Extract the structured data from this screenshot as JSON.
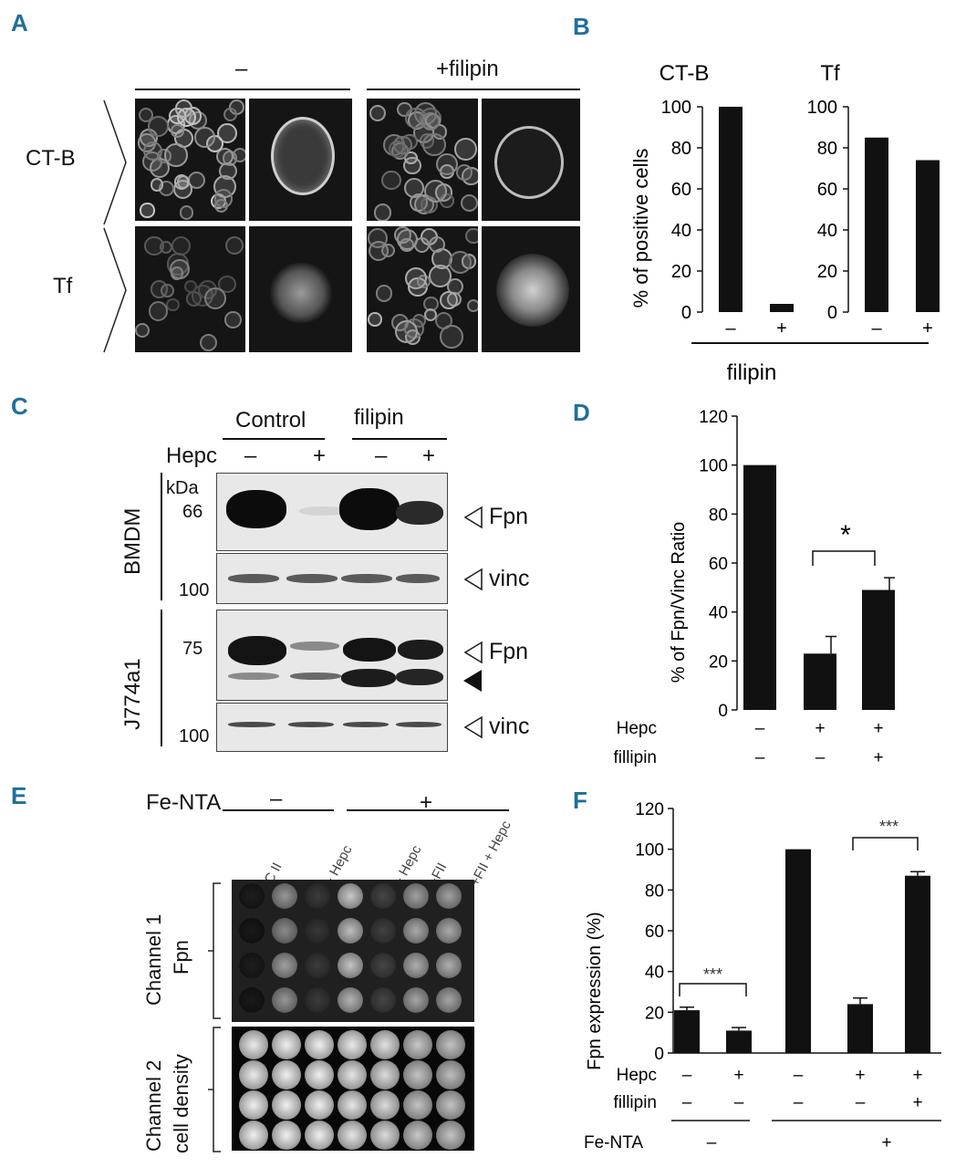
{
  "panels": {
    "A": "A",
    "B": "B",
    "C": "C",
    "D": "D",
    "E": "E",
    "F": "F"
  },
  "panelA": {
    "col_minus": "–",
    "col_filipin": "+filipin",
    "row1": "CT-B",
    "row2": "Tf"
  },
  "panelB": {
    "ylabel": "% of positive cells",
    "xlabel": "filipin",
    "sub1_title": "CT-B",
    "sub2_title": "Tf"
  },
  "panelC": {
    "group_control": "Control",
    "group_filipin": "filipin",
    "hepc_label": "Hepc",
    "hepc_signs": [
      "–",
      "+",
      "–",
      "+"
    ],
    "kda_label": "kDa",
    "marker_66": "66",
    "marker_100a": "100",
    "marker_75": "75",
    "marker_100b": "100",
    "cell_bmdm": "BMDM",
    "cell_j774": "J774a1",
    "band_fpn1": "Fpn",
    "band_vinc1": "vinc",
    "band_fpn2": "Fpn",
    "band_vinc2": "vinc",
    "colors": {
      "blot_bg": "#e8e8e8",
      "band": "#111111"
    }
  },
  "panelD": {
    "ylabel": "% of Fpn/Vinc Ratio",
    "row1_label": "Hepc",
    "row1_signs": [
      "–",
      "+",
      "+"
    ],
    "row2_label": "fillipin",
    "row2_signs": [
      "–",
      "–",
      "+"
    ],
    "sig": "*"
  },
  "panelE": {
    "fe_label": "Fe-NTA",
    "fe_minus": "–",
    "fe_plus": "+",
    "col_labels": [
      "AC II",
      "+ Hepc",
      "+ Hepc",
      "+FII",
      "+FII + Hepc"
    ],
    "channel1_line1": "Channel 1",
    "channel1_line2": "Fpn",
    "channel2_line1": "Channel 2",
    "channel2_line2": "cell density"
  },
  "panelF": {
    "ylabel": "Fpn expression (%)",
    "row1_label": "Hepc",
    "row1_signs": [
      "–",
      "+",
      "–",
      "+",
      "+"
    ],
    "row2_label": "fillipin",
    "row2_signs": [
      "–",
      "–",
      "–",
      "–",
      "+"
    ],
    "fe_label": "Fe-NTA",
    "fe_signs": [
      "–",
      "+"
    ],
    "sig1": "***",
    "sig2": "***"
  },
  "chart_data": [
    {
      "panel": "B",
      "type": "bar",
      "title": "CT-B",
      "categories": [
        "–",
        "+"
      ],
      "values": [
        100,
        4
      ],
      "ylim": [
        0,
        100
      ],
      "yticks": [
        0,
        20,
        40,
        60,
        80,
        100
      ],
      "ylabel": "% of positive cells",
      "xlabel": "filipin"
    },
    {
      "panel": "B",
      "type": "bar",
      "title": "Tf",
      "categories": [
        "–",
        "+"
      ],
      "values": [
        85,
        74
      ],
      "ylim": [
        0,
        100
      ],
      "yticks": [
        0,
        20,
        40,
        60,
        80,
        100
      ]
    },
    {
      "panel": "D",
      "type": "bar",
      "categories": [
        "Hepc – / fillipin –",
        "Hepc + / fillipin –",
        "Hepc + / fillipin +"
      ],
      "values": [
        100,
        23,
        49
      ],
      "errors": [
        0,
        7,
        5
      ],
      "ylim": [
        0,
        120
      ],
      "yticks": [
        0,
        20,
        40,
        60,
        80,
        100,
        120
      ],
      "ylabel": "% of Fpn/Vinc Ratio",
      "annotations": [
        {
          "between": [
            1,
            2
          ],
          "text": "*"
        }
      ]
    },
    {
      "panel": "F",
      "type": "bar",
      "categories": [
        "Hepc – / fillipin – / Fe-NTA –",
        "Hepc + / fillipin – / Fe-NTA –",
        "Hepc – / fillipin – / Fe-NTA +",
        "Hepc + / fillipin – / Fe-NTA +",
        "Hepc + / fillipin + / Fe-NTA +"
      ],
      "values": [
        21,
        11,
        100,
        24,
        87
      ],
      "errors": [
        1.5,
        1.5,
        0,
        3,
        2
      ],
      "ylim": [
        0,
        120
      ],
      "yticks": [
        0,
        20,
        40,
        60,
        80,
        100,
        120
      ],
      "ylabel": "Fpn expression (%)",
      "annotations": [
        {
          "between": [
            0,
            1
          ],
          "text": "***"
        },
        {
          "between": [
            3,
            4
          ],
          "text": "***"
        }
      ]
    }
  ]
}
